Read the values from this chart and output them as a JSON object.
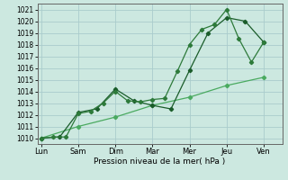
{
  "xlabel": "Pression niveau de la mer( hPa )",
  "background_color": "#cce8e0",
  "grid_color": "#aacccc",
  "line_color_dark": "#1a5c2a",
  "line_color_mid": "#2d7a3a",
  "line_color_light": "#4aaa60",
  "ylim": [
    1009.5,
    1021.5
  ],
  "yticks": [
    1010,
    1011,
    1012,
    1013,
    1014,
    1015,
    1016,
    1017,
    1018,
    1019,
    1020,
    1021
  ],
  "xtick_labels": [
    "Lun",
    "Sam",
    "Dim",
    "Mar",
    "Mer",
    "Jeu",
    "Ven"
  ],
  "xtick_positions": [
    0,
    1,
    2,
    3,
    4,
    5,
    6
  ],
  "xlim": [
    -0.1,
    6.5
  ],
  "series1_x": [
    0,
    0.33,
    0.67,
    1.0,
    1.33,
    1.67,
    2.0,
    2.33,
    2.67,
    3.0,
    3.33,
    3.67,
    4.0,
    4.33,
    4.67,
    5.0,
    5.33,
    5.67,
    6.0
  ],
  "series1_y": [
    1010.0,
    1010.1,
    1010.1,
    1012.1,
    1012.3,
    1013.0,
    1014.0,
    1013.2,
    1013.1,
    1013.3,
    1013.4,
    1015.7,
    1018.0,
    1019.3,
    1019.7,
    1021.0,
    1018.5,
    1016.5,
    1018.2
  ],
  "series2_x": [
    0,
    0.5,
    1.0,
    1.5,
    2.0,
    2.5,
    3.0,
    3.5,
    4.0,
    4.5,
    5.0,
    5.5,
    6.0
  ],
  "series2_y": [
    1010.0,
    1010.1,
    1012.2,
    1012.5,
    1014.2,
    1013.2,
    1012.8,
    1012.5,
    1015.8,
    1019.0,
    1020.3,
    1020.0,
    1018.2
  ],
  "series3_x": [
    0,
    1.0,
    2.0,
    3.0,
    4.0,
    5.0,
    6.0
  ],
  "series3_y": [
    1010.0,
    1011.0,
    1011.8,
    1012.8,
    1013.5,
    1014.5,
    1015.2
  ]
}
